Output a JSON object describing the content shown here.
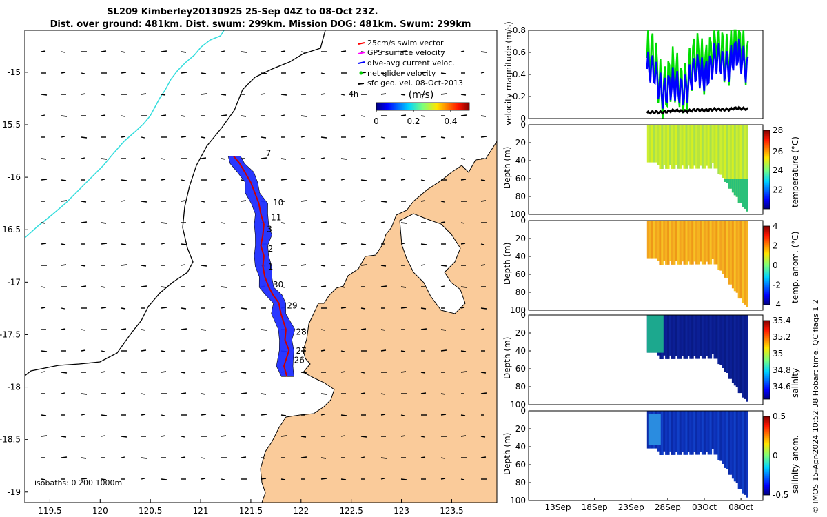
{
  "title_line1": "SL209 Kimberley20130925 25-Sep 04Z to 08-Oct 23Z.",
  "title_line2": "Dist. over ground: 481km. Dist. swum: 299km. Mission DOG: 481km. Swum: 299km",
  "colors": {
    "land": "#FACB9A",
    "ocean": "#FFFFFF",
    "isobath_200": "#000000",
    "isobath_1000": "#33DDDD",
    "track": "#0000FF",
    "track_line": "#CC0000"
  },
  "map": {
    "xticks": [
      "119.5",
      "120",
      "120.5",
      "121",
      "121.5",
      "122",
      "122.5",
      "123",
      "123.5"
    ],
    "yticks": [
      "-15",
      "-15.5",
      "-16",
      "-16.5",
      "-17",
      "-17.5",
      "-18",
      "-18.5",
      "-19"
    ],
    "legend": [
      {
        "label": "25cm/s swim vector",
        "color": "#FF0000",
        "icon": "arrow"
      },
      {
        "label": "GPS surface velocity",
        "color": "#FF00FF",
        "icon": "arrow"
      },
      {
        "label": "dive-avg current veloc.",
        "color": "#0000FF",
        "icon": "arrow"
      },
      {
        "label": "net glider velocity",
        "color": "#00CC00",
        "icon": "dot"
      },
      {
        "label": "sfc geo. vel. 08-Oct-2013",
        "color": "#000000",
        "icon": "arrow"
      }
    ],
    "colorbar": {
      "label": "(m/s)",
      "ticks": [
        "0",
        "0.2",
        "0.4"
      ],
      "range": [
        0,
        0.5
      ]
    },
    "inset_label": "4h",
    "isobaths_label": "isobaths: 0   200  1000m",
    "day_labels": [
      {
        "text": "7",
        "lon": 121.65,
        "lat": -15.8
      },
      {
        "text": "10",
        "lon": 121.72,
        "lat": -16.27
      },
      {
        "text": "11",
        "lon": 121.7,
        "lat": -16.41
      },
      {
        "text": "3",
        "lon": 121.66,
        "lat": -16.52
      },
      {
        "text": "2",
        "lon": 121.67,
        "lat": -16.71
      },
      {
        "text": "1",
        "lon": 121.67,
        "lat": -16.88
      },
      {
        "text": "30",
        "lon": 121.72,
        "lat": -17.05
      },
      {
        "text": "29",
        "lon": 121.86,
        "lat": -17.25
      },
      {
        "text": "28",
        "lon": 121.95,
        "lat": -17.5
      },
      {
        "text": "27",
        "lon": 121.95,
        "lat": -17.68
      },
      {
        "text": "26",
        "lon": 121.93,
        "lat": -17.77
      }
    ]
  },
  "panels": {
    "velocity": {
      "ylabel": "velocity magnitude (m/s)",
      "yticks": [
        "0",
        "0.2",
        "0.4",
        "0.6",
        "0.8"
      ]
    },
    "temperature": {
      "ylabel": "temperature (°C)",
      "cticks": [
        "28",
        "26",
        "24",
        "22"
      ]
    },
    "temp_anom": {
      "ylabel": "temp. anom. (°C)",
      "cticks": [
        "4",
        "2",
        "0",
        "-2",
        "-4"
      ]
    },
    "salinity": {
      "ylabel": "salinity",
      "cticks": [
        "35.4",
        "35.2",
        "35",
        "34.8",
        "34.6"
      ]
    },
    "sal_anom": {
      "ylabel": "salinity anom.",
      "cticks": [
        "0.5",
        "0",
        "-0.5"
      ]
    },
    "depth_label": "Depth (m)",
    "depth_ticks": [
      "0",
      "20",
      "40",
      "60",
      "80",
      "100"
    ],
    "xticks": [
      "13Sep",
      "18Sep",
      "23Sep",
      "28Sep",
      "03Oct",
      "08Oct"
    ]
  },
  "side_text": "© IMOS 15-Apr-2024 10:52:38 Hobart time. QC flags 1  2",
  "chart_data": [
    {
      "type": "scatter",
      "name_in_figure": "glider track map",
      "xlim": [
        119.25,
        123.95
      ],
      "ylim": [
        -19.1,
        -14.6
      ],
      "track": {
        "lon": [
          121.86,
          121.83,
          121.88,
          121.84,
          121.85,
          121.8,
          121.78,
          121.72,
          121.68,
          121.64,
          121.62,
          121.63,
          121.6,
          121.62,
          121.63,
          121.6,
          121.58,
          121.54,
          121.5,
          121.44,
          121.39,
          121.33
        ],
        "lat": [
          -17.9,
          -17.8,
          -17.65,
          -17.55,
          -17.45,
          -17.3,
          -17.2,
          -17.12,
          -17.05,
          -16.95,
          -16.85,
          -16.75,
          -16.65,
          -16.55,
          -16.45,
          -16.35,
          -16.25,
          -16.15,
          -16.05,
          -15.95,
          -15.87,
          -15.8
        ]
      }
    },
    {
      "type": "line",
      "name_in_figure": "velocity magnitude (m/s)",
      "x_dates": [
        "2013-09-25",
        "2013-09-27",
        "2013-09-29",
        "2013-10-01",
        "2013-10-03",
        "2013-10-05",
        "2013-10-07",
        "2013-10-09"
      ],
      "ylim": [
        0,
        0.8
      ],
      "series": [
        {
          "color": "#00DD00",
          "values": [
            0.55,
            0.35,
            0.3,
            0.4,
            0.55,
            0.6,
            0.65,
            0.6
          ]
        },
        {
          "color": "#0000FF",
          "values": [
            0.45,
            0.3,
            0.25,
            0.35,
            0.45,
            0.5,
            0.55,
            0.5
          ]
        },
        {
          "color": "#000000",
          "values": [
            0.05,
            0.06,
            0.07,
            0.07,
            0.08,
            0.08,
            0.09,
            0.09
          ]
        }
      ]
    },
    {
      "type": "heatmap",
      "name_in_figure": "temperature (°C)",
      "crange": [
        21,
        29.5
      ]
    },
    {
      "type": "heatmap",
      "name_in_figure": "temp. anom. (°C)",
      "crange": [
        -4,
        4
      ]
    },
    {
      "type": "heatmap",
      "name_in_figure": "salinity",
      "crange": [
        34.5,
        35.45
      ]
    },
    {
      "type": "heatmap",
      "name_in_figure": "salinity anom.",
      "crange": [
        -0.5,
        0.5
      ]
    }
  ]
}
